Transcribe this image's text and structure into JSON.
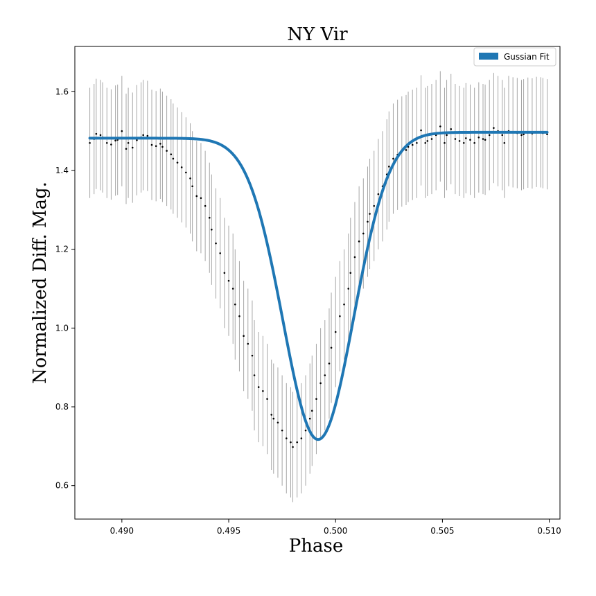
{
  "chart_data": {
    "type": "scatter",
    "title": "NY Vir",
    "xlabel": "Phase",
    "ylabel": "Normalized Diff. Mag.",
    "xlim": [
      0.4878,
      0.5105
    ],
    "ylim": [
      0.515,
      1.715
    ],
    "xticks": [
      0.49,
      0.495,
      0.5,
      0.505,
      0.51
    ],
    "xtick_labels": [
      "0.490",
      "0.495",
      "0.500",
      "0.505",
      "0.510"
    ],
    "yticks": [
      0.6,
      0.8,
      1.0,
      1.2,
      1.4,
      1.6
    ],
    "ytick_labels": [
      "0.6",
      "0.8",
      "1.0",
      "1.2",
      "1.4",
      "1.6"
    ],
    "grid": false,
    "legend": {
      "position": "top-right",
      "entries": [
        "Gussian Fit"
      ]
    },
    "colors": {
      "fit": "#1f77b4",
      "points": "#000000",
      "errorbars": "#a6a6a6"
    },
    "errorbar_halfwidth": 0.14,
    "fit_model": {
      "name": "Gussian Fit",
      "baseline_left": 1.482,
      "baseline_right": 1.497,
      "baseline_center": 0.4993,
      "depth": 0.772,
      "center": 0.4992,
      "sigma": 0.00165
    },
    "series": [
      {
        "name": "",
        "x": [
          0.4885,
          0.4887,
          0.4888,
          0.489,
          0.4891,
          0.4893,
          0.4895,
          0.4897,
          0.4898,
          0.49,
          0.4902,
          0.4903,
          0.4905,
          0.4907,
          0.4909,
          0.491,
          0.4912,
          0.4914,
          0.4916,
          0.4918,
          0.4919,
          0.4921,
          0.4923,
          0.4924,
          0.4926,
          0.4928,
          0.493,
          0.4932,
          0.4933,
          0.4935,
          0.4937,
          0.4939,
          0.4941,
          0.4942,
          0.4944,
          0.4946,
          0.4948,
          0.495,
          0.4952,
          0.4953,
          0.4955,
          0.4957,
          0.4959,
          0.4961,
          0.4962,
          0.4964,
          0.4966,
          0.4968,
          0.497,
          0.4971,
          0.4973,
          0.4975,
          0.4977,
          0.4979,
          0.498,
          0.4982,
          0.4984,
          0.4986,
          0.4988,
          0.4989,
          0.4991,
          0.4993,
          0.4995,
          0.4997,
          0.4998,
          0.5,
          0.5002,
          0.5004,
          0.5006,
          0.5007,
          0.5009,
          0.5011,
          0.5013,
          0.5015,
          0.5016,
          0.5018,
          0.502,
          0.5022,
          0.5024,
          0.5025,
          0.5027,
          0.5029,
          0.5031,
          0.5033,
          0.5034,
          0.5036,
          0.5038,
          0.504,
          0.5042,
          0.5043,
          0.5045,
          0.5047,
          0.5049,
          0.5051,
          0.5052,
          0.5054,
          0.5056,
          0.5058,
          0.506,
          0.5061,
          0.5063,
          0.5065,
          0.5067,
          0.5069,
          0.507,
          0.5072,
          0.5074,
          0.5076,
          0.5078,
          0.5079,
          0.5081,
          0.5083,
          0.5085,
          0.5087,
          0.5088,
          0.509,
          0.5092,
          0.5094,
          0.5096,
          0.5097,
          0.5099
        ],
        "y": [
          1.47,
          1.48,
          1.493,
          1.49,
          1.484,
          1.47,
          1.466,
          1.476,
          1.478,
          1.5,
          1.455,
          1.47,
          1.458,
          1.477,
          1.484,
          1.49,
          1.488,
          1.465,
          1.462,
          1.468,
          1.46,
          1.45,
          1.441,
          1.43,
          1.42,
          1.408,
          1.395,
          1.38,
          1.36,
          1.335,
          1.33,
          1.31,
          1.28,
          1.25,
          1.215,
          1.19,
          1.14,
          1.12,
          1.1,
          1.06,
          1.03,
          0.98,
          0.96,
          0.93,
          0.88,
          0.85,
          0.84,
          0.82,
          0.78,
          0.77,
          0.76,
          0.74,
          0.72,
          0.71,
          0.698,
          0.71,
          0.72,
          0.74,
          0.77,
          0.79,
          0.82,
          0.86,
          0.88,
          0.91,
          0.95,
          0.99,
          1.03,
          1.06,
          1.1,
          1.14,
          1.18,
          1.22,
          1.24,
          1.27,
          1.29,
          1.31,
          1.34,
          1.36,
          1.39,
          1.41,
          1.43,
          1.44,
          1.448,
          1.452,
          1.46,
          1.465,
          1.47,
          1.502,
          1.47,
          1.475,
          1.48,
          1.49,
          1.512,
          1.47,
          1.49,
          1.505,
          1.48,
          1.475,
          1.47,
          1.482,
          1.478,
          1.47,
          1.484,
          1.48,
          1.478,
          1.49,
          1.508,
          1.5,
          1.49,
          1.47,
          1.5,
          1.497,
          1.495,
          1.49,
          1.492,
          1.496,
          1.494,
          1.498,
          1.497,
          1.495,
          1.492
        ]
      }
    ]
  }
}
